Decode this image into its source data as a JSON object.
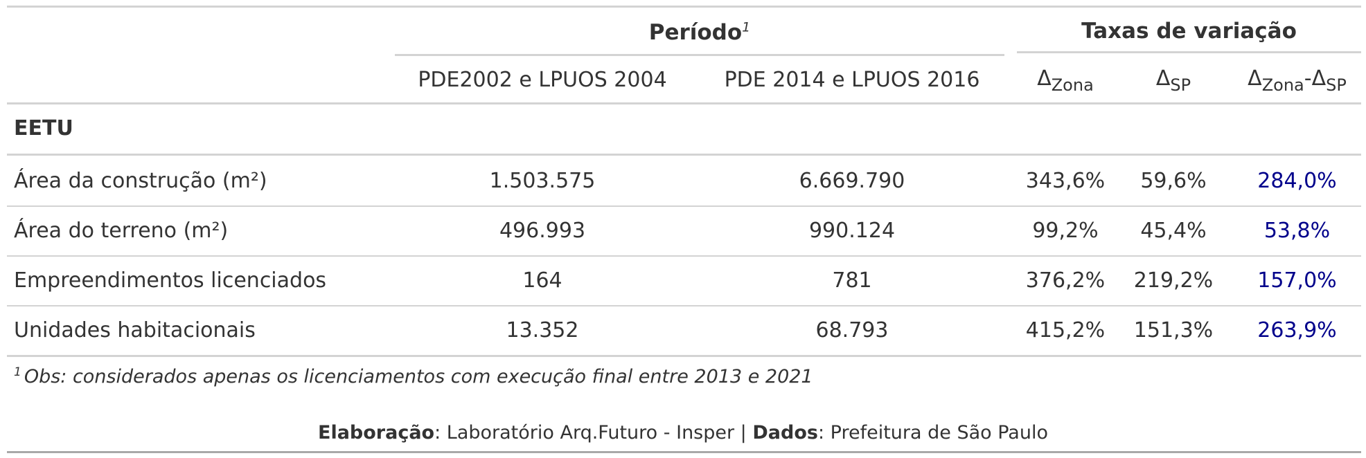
{
  "header": {
    "spanner_periodo": "Período",
    "spanner_periodo_note": "1",
    "spanner_taxas": "Taxas de variação",
    "col_2004": "PDE2002 e LPUOS 2004",
    "col_2016": "PDE 2014 e LPUOS 2016",
    "delta": "Δ",
    "zona": "Zona",
    "sp": "SP",
    "minus": "-"
  },
  "group": {
    "label": "EETU"
  },
  "rows": [
    {
      "label": "Área da construção (m²)",
      "v2004": "1.503.575",
      "v2016": "6.669.790",
      "dzona": "343,6%",
      "dsp": "59,6%",
      "ddiff": "284,0%"
    },
    {
      "label": "Área do terreno (m²)",
      "v2004": "496.993",
      "v2016": "990.124",
      "dzona": "99,2%",
      "dsp": "45,4%",
      "ddiff": "53,8%"
    },
    {
      "label": "Empreendimentos licenciados",
      "v2004": "164",
      "v2016": "781",
      "dzona": "376,2%",
      "dsp": "219,2%",
      "ddiff": "157,0%"
    },
    {
      "label": "Unidades habitacionais",
      "v2004": "13.352",
      "v2016": "68.793",
      "dzona": "415,2%",
      "dsp": "151,3%",
      "ddiff": "263,9%"
    }
  ],
  "footnote": {
    "mark": "1",
    "text": "Obs: considerados apenas os licenciamentos com execução final entre 2013 e 2021"
  },
  "source": {
    "elab_label": "Elaboração",
    "elab_text": ": Laboratório Arq.Futuro - Insper | ",
    "data_label": "Dados",
    "data_text": ": Prefeitura de São Paulo"
  },
  "colors": {
    "text": "#333333",
    "accent": "#00008b",
    "rule": "#d3d3d3"
  }
}
